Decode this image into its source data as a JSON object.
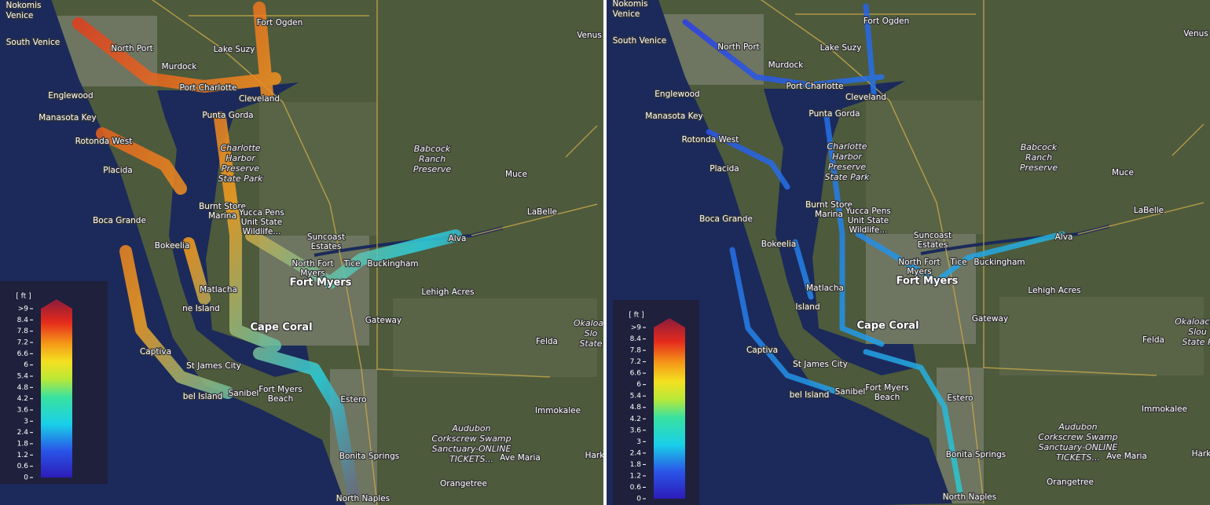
{
  "panels": [
    {
      "places": [
        [
          "Nokomis"
        ],
        [
          "Venice"
        ],
        [
          "South Venice"
        ],
        [
          "North Port"
        ],
        [
          "Murdock"
        ],
        [
          "Lake Suzy"
        ],
        [
          "Fort Ogden"
        ],
        [
          "Port Charlotte"
        ],
        [
          "Cleveland"
        ],
        [
          "Englewood"
        ],
        [
          "Manasota Key"
        ],
        [
          "Punta Gorda"
        ],
        [
          "Rotonda West"
        ],
        [
          "Charlotte",
          "Harbor",
          "Preserve",
          "State Park"
        ],
        [
          "Babcock",
          "Ranch",
          "Preserve"
        ],
        [
          "Placida"
        ],
        [
          "Muce"
        ],
        [
          "Burnt Store",
          "Marina"
        ],
        [
          "Yucca Pens",
          "Unit State",
          "Wildlife..."
        ],
        [
          "LaBelle"
        ],
        [
          "Boca Grande"
        ],
        [
          "Suncoast",
          "Estates"
        ],
        [
          "Alva"
        ],
        [
          "Bokeelia"
        ],
        [
          "North Fort",
          "Myers"
        ],
        [
          "Tice"
        ],
        [
          "Buckingham"
        ],
        [
          "Fort Myers"
        ],
        [
          "Matlacha"
        ],
        [
          "Lehigh Acres"
        ],
        [
          "ne Island"
        ],
        [
          "Gateway"
        ],
        [
          "Cape Coral"
        ],
        [
          "Felda"
        ],
        [
          "Captiva"
        ],
        [
          "St James City"
        ],
        [
          "Sanibel"
        ],
        [
          "bel Island"
        ],
        [
          "Fort Myers",
          "Beach"
        ],
        [
          "Estero"
        ],
        [
          "Immokalee"
        ],
        [
          "Audubon",
          "Corkscrew Swamp",
          "Sanctuary-ONLINE",
          "TICKETS..."
        ],
        [
          "Bonita Springs"
        ],
        [
          "Ave Maria"
        ],
        [
          "Orangetree"
        ],
        [
          "North Naples"
        ],
        [
          "Venus"
        ],
        [
          "Harke"
        ],
        [
          "Okaloac",
          "Slo",
          "State"
        ]
      ],
      "legend": {
        "unit": "[ ft ]",
        "labels": [
          ">9",
          "8.4",
          "7.8",
          "7.2",
          "6.6",
          "6",
          "5.4",
          "4.8",
          "4.2",
          "3.6",
          "3",
          "2.4",
          "1.8",
          "1.2",
          "0.6",
          "0"
        ]
      }
    },
    {
      "places": [
        [
          "Nokomis"
        ],
        [
          "Venice"
        ],
        [
          "South Venice"
        ],
        [
          "North Port"
        ],
        [
          "Murdock"
        ],
        [
          "Lake Suzy"
        ],
        [
          "Fort Ogden"
        ],
        [
          "Port Charlotte"
        ],
        [
          "Cleveland"
        ],
        [
          "Englewood"
        ],
        [
          "Manasota Key"
        ],
        [
          "Punta Gorda"
        ],
        [
          "Rotonda West"
        ],
        [
          "Charlotte",
          "Harbor",
          "Preserve",
          "State Park"
        ],
        [
          "Babcock",
          "Ranch",
          "Preserve"
        ],
        [
          "Placida"
        ],
        [
          "Muce"
        ],
        [
          "Burnt Store",
          "Marina"
        ],
        [
          "Yucca Pens",
          "Unit State",
          "Wildlife..."
        ],
        [
          "LaBelle"
        ],
        [
          "Boca Grande"
        ],
        [
          "Suncoast",
          "Estates"
        ],
        [
          "Alva"
        ],
        [
          "Bokeelia"
        ],
        [
          "North Fort",
          "Myers"
        ],
        [
          "Tice"
        ],
        [
          "Buckingham"
        ],
        [
          "Fort Myers"
        ],
        [
          "Matlacha"
        ],
        [
          "Lehigh Acres"
        ],
        [
          "Island"
        ],
        [
          "Gateway"
        ],
        [
          "Cape Coral"
        ],
        [
          "Felda"
        ],
        [
          "Captiva"
        ],
        [
          "St James City"
        ],
        [
          "Sanibel"
        ],
        [
          "bel Island"
        ],
        [
          "Fort Myers",
          "Beach"
        ],
        [
          "Estero"
        ],
        [
          "Immokalee"
        ],
        [
          "Audubon",
          "Corkscrew Swamp",
          "Sanctuary-ONLINE",
          "TICKETS..."
        ],
        [
          "Bonita Springs"
        ],
        [
          "Ave Maria"
        ],
        [
          "Orangetree"
        ],
        [
          "North Naples"
        ],
        [
          "Venus"
        ],
        [
          "Harke"
        ],
        [
          "Okaloacoo",
          "Slou",
          "State P"
        ]
      ],
      "legend": {
        "unit": "[ ft ]",
        "labels": [
          ">9",
          "8.4",
          "7.8",
          "7.2",
          "6.6",
          "6",
          "5.4",
          "4.8",
          "4.2",
          "3.6",
          "3",
          "2.4",
          "1.8",
          "1.2",
          "0.6",
          "0"
        ]
      }
    }
  ]
}
